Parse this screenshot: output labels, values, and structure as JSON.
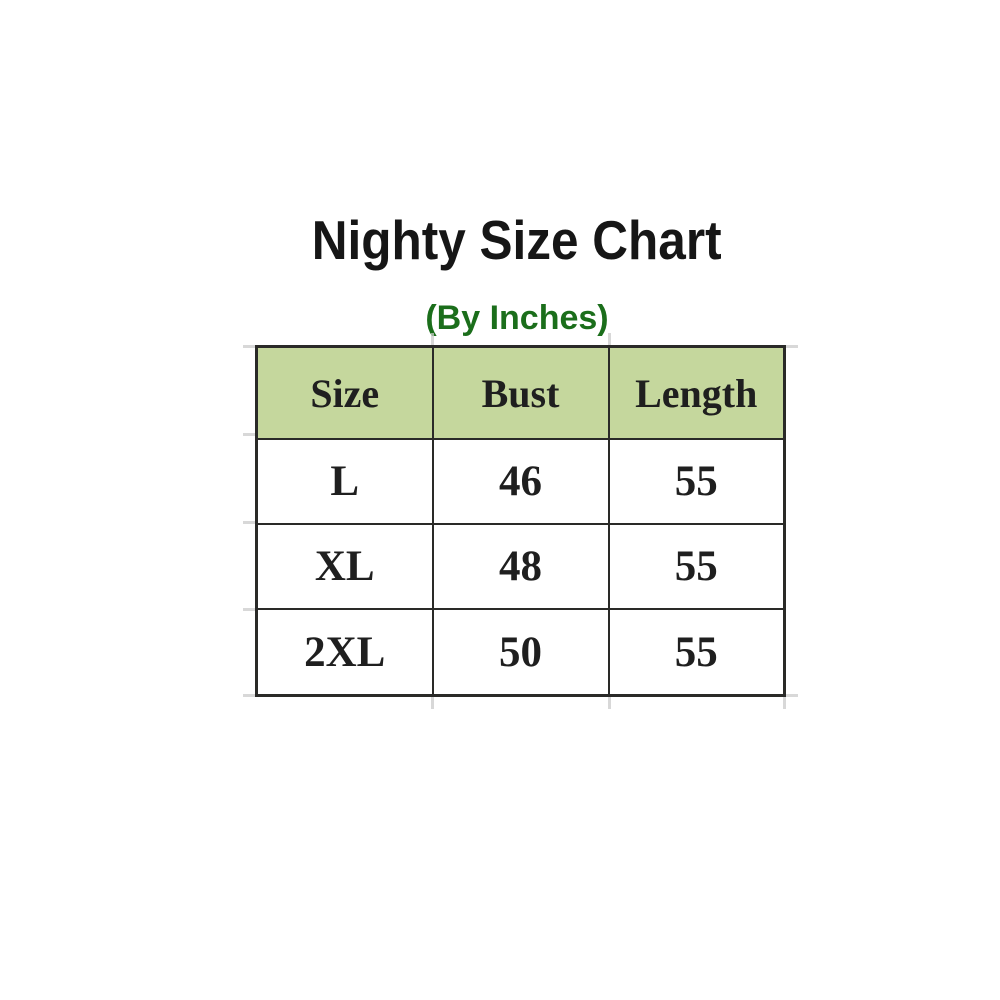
{
  "page": {
    "background": "#ffffff"
  },
  "header": {
    "title": "Nighty Size Chart",
    "subtitle": "(By Inches)"
  },
  "colors": {
    "background": "#ffffff",
    "title_text": "#161616",
    "subtitle_text": "#1b6e1b",
    "header_fill": "#c5d79d",
    "table_border": "#2a2a28",
    "cell_text": "#1f1f1f",
    "gridline_stub": "#cbcbcb"
  },
  "chart_data": {
    "type": "table",
    "title": "Nighty Size Chart",
    "subtitle": "(By Inches)",
    "units": "inches",
    "columns": [
      "Size",
      "Bust",
      "Length"
    ],
    "rows": [
      [
        "L",
        "46",
        "55"
      ],
      [
        "XL",
        "48",
        "55"
      ],
      [
        "2XL",
        "50",
        "55"
      ]
    ]
  }
}
